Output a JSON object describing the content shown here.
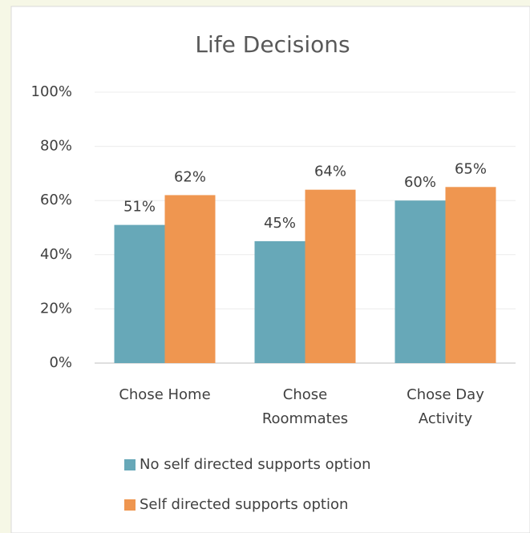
{
  "chart_data": {
    "type": "bar",
    "title": "Life Decisions",
    "categories": [
      "Chose Home",
      "Chose Roommates",
      "Chose Day Activity"
    ],
    "series": [
      {
        "name": "No self directed supports option",
        "color": "#67a8b8",
        "values": [
          51,
          45,
          60
        ],
        "value_labels": [
          "51%",
          "45%",
          "60%"
        ]
      },
      {
        "name": "Self directed supports option",
        "color": "#ef9650",
        "values": [
          62,
          64,
          65
        ],
        "value_labels": [
          "62%",
          "64%",
          "65%"
        ]
      }
    ],
    "ylim": [
      0,
      100
    ],
    "yticks": [
      {
        "value": 0,
        "label": "0%"
      },
      {
        "value": 20,
        "label": "20%"
      },
      {
        "value": 40,
        "label": "40%"
      },
      {
        "value": 60,
        "label": "60%"
      },
      {
        "value": 80,
        "label": "80%"
      },
      {
        "value": 100,
        "label": "100%"
      }
    ],
    "grid": true,
    "legend": "bottom"
  }
}
